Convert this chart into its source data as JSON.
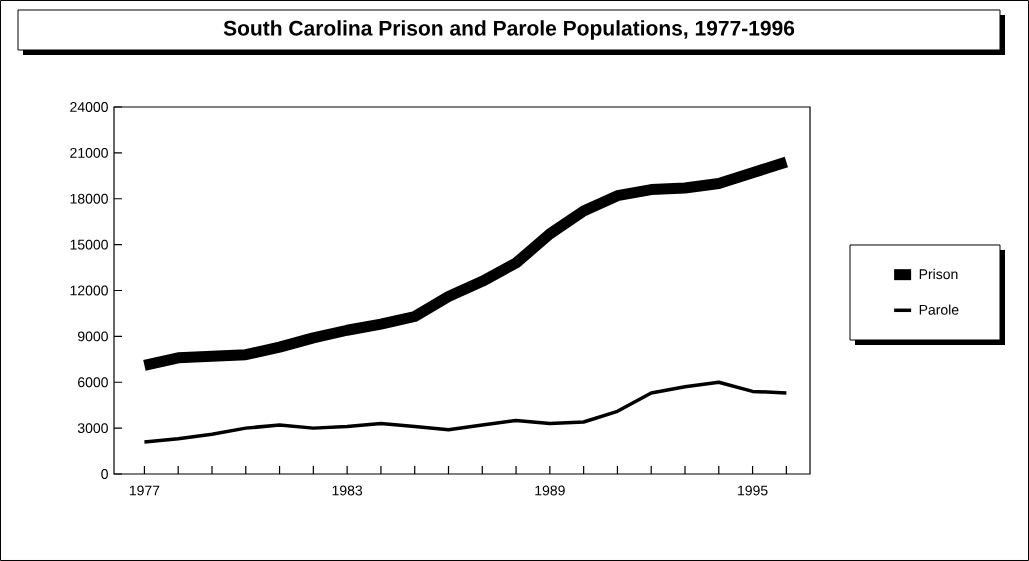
{
  "chart_data": {
    "type": "line",
    "title": "South Carolina Prison and Parole Populations, 1977-1996",
    "x": [
      1977,
      1978,
      1979,
      1980,
      1981,
      1982,
      1983,
      1984,
      1985,
      1986,
      1987,
      1988,
      1989,
      1990,
      1991,
      1992,
      1993,
      1994,
      1995,
      1996
    ],
    "series": [
      {
        "name": "Prison",
        "color": "#000000",
        "values": [
          7100,
          7600,
          7700,
          7800,
          8300,
          8900,
          9400,
          9800,
          10300,
          11600,
          12600,
          13800,
          15700,
          17200,
          18200,
          18600,
          18700,
          19000,
          19700,
          20400
        ]
      },
      {
        "name": "Parole",
        "color": "#000000",
        "values": [
          2100,
          2300,
          2600,
          3000,
          3200,
          3000,
          3100,
          3300,
          3100,
          2900,
          3200,
          3500,
          3300,
          3400,
          4100,
          5300,
          5700,
          6000,
          5400,
          5300
        ]
      }
    ],
    "xlim": [
      1976.1,
      1996.7
    ],
    "xticks": [
      1977,
      {
        "value": 1978,
        "label": null
      },
      {
        "value": 1979,
        "label": null
      },
      {
        "value": 1980,
        "label": null
      },
      {
        "value": 1981,
        "label": null
      },
      {
        "value": 1982,
        "label": null
      },
      1983,
      {
        "value": 1984,
        "label": null
      },
      {
        "value": 1985,
        "label": null
      },
      {
        "value": 1986,
        "label": null
      },
      {
        "value": 1987,
        "label": null
      },
      {
        "value": 1988,
        "label": null
      },
      1989,
      {
        "value": 1990,
        "label": null
      },
      {
        "value": 1991,
        "label": null
      },
      {
        "value": 1992,
        "label": null
      },
      {
        "value": 1993,
        "label": null
      },
      {
        "value": 1994,
        "label": null
      },
      1995,
      {
        "value": 1996,
        "label": null
      }
    ],
    "ylim": [
      0,
      24000
    ],
    "yticks": [
      0,
      3000,
      6000,
      9000,
      12000,
      15000,
      18000,
      21000,
      24000
    ],
    "legend": "right"
  }
}
